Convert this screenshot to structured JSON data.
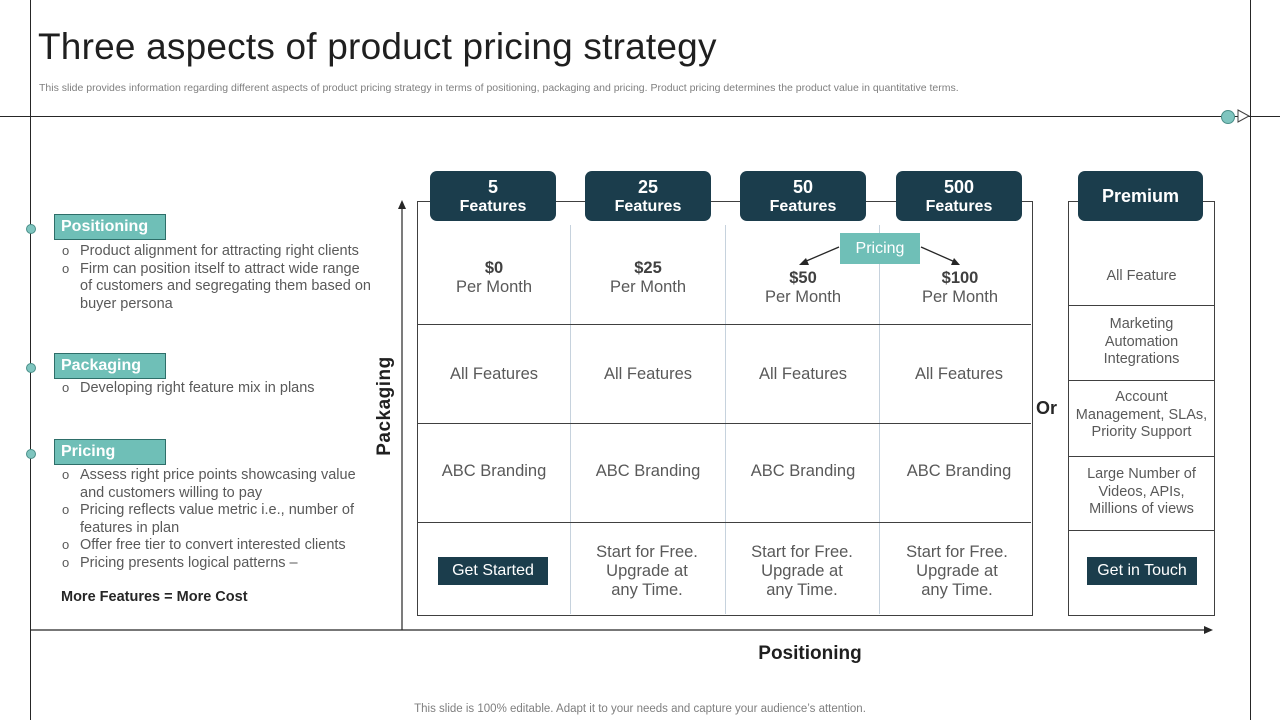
{
  "title": "Three aspects of product pricing strategy",
  "subtitle": "This slide provides information regarding different aspects of product pricing strategy in terms of positioning, packaging and pricing. Product pricing determines the product value in quantitative terms.",
  "footer": "This slide is 100% editable. Adapt it to your needs and capture your audience’s attention.",
  "left": {
    "sections": [
      {
        "label": "Positioning",
        "bullets": [
          "Product alignment for attracting right clients",
          "Firm can position itself to attract wide range of customers and segregating them based on buyer persona"
        ]
      },
      {
        "label": "Packaging",
        "bullets": [
          "Developing right feature mix in plans"
        ]
      },
      {
        "label": "Pricing",
        "bullets": [
          "Assess right price points showcasing value and customers willing to pay",
          "Pricing reflects value metric i.e., number of features in plan",
          "Offer free tier to convert interested clients",
          "Pricing presents logical patterns –"
        ]
      }
    ],
    "cost_note": "More Features = More Cost"
  },
  "axes": {
    "y_label": "Packaging",
    "x_label": "Positioning"
  },
  "pricing_label": "Pricing",
  "or_label": "Or",
  "plans": [
    {
      "number": "5",
      "features_label": "Features",
      "price": "$0",
      "period": "Per Month",
      "packaging": "All Features",
      "branding": "ABC Branding",
      "cta": "Get Started"
    },
    {
      "number": "25",
      "features_label": "Features",
      "price": "$25",
      "period": "Per Month",
      "packaging": "All Features",
      "branding": "ABC Branding",
      "cta": "Start for Free. Upgrade at any Time."
    },
    {
      "number": "50",
      "features_label": "Features",
      "price": "$50",
      "period": "Per Month",
      "packaging": "All Features",
      "branding": "ABC Branding",
      "cta": "Start for Free. Upgrade at any Time."
    },
    {
      "number": "500",
      "features_label": "Features",
      "price": "$100",
      "period": "Per Month",
      "packaging": "All Features",
      "branding": "ABC Branding",
      "cta": "Start for Free. Upgrade at any Time."
    }
  ],
  "premium": {
    "label": "Premium",
    "cells": [
      "All Feature",
      "Marketing Automation Integrations",
      "Account Management, SLAs, Priority Support",
      "Large Number of Videos, APIs, Millions of views"
    ],
    "cta": "Get in Touch"
  },
  "colors": {
    "dark_teal": "#1b3d4c",
    "accent_teal": "#6fbfb7"
  }
}
